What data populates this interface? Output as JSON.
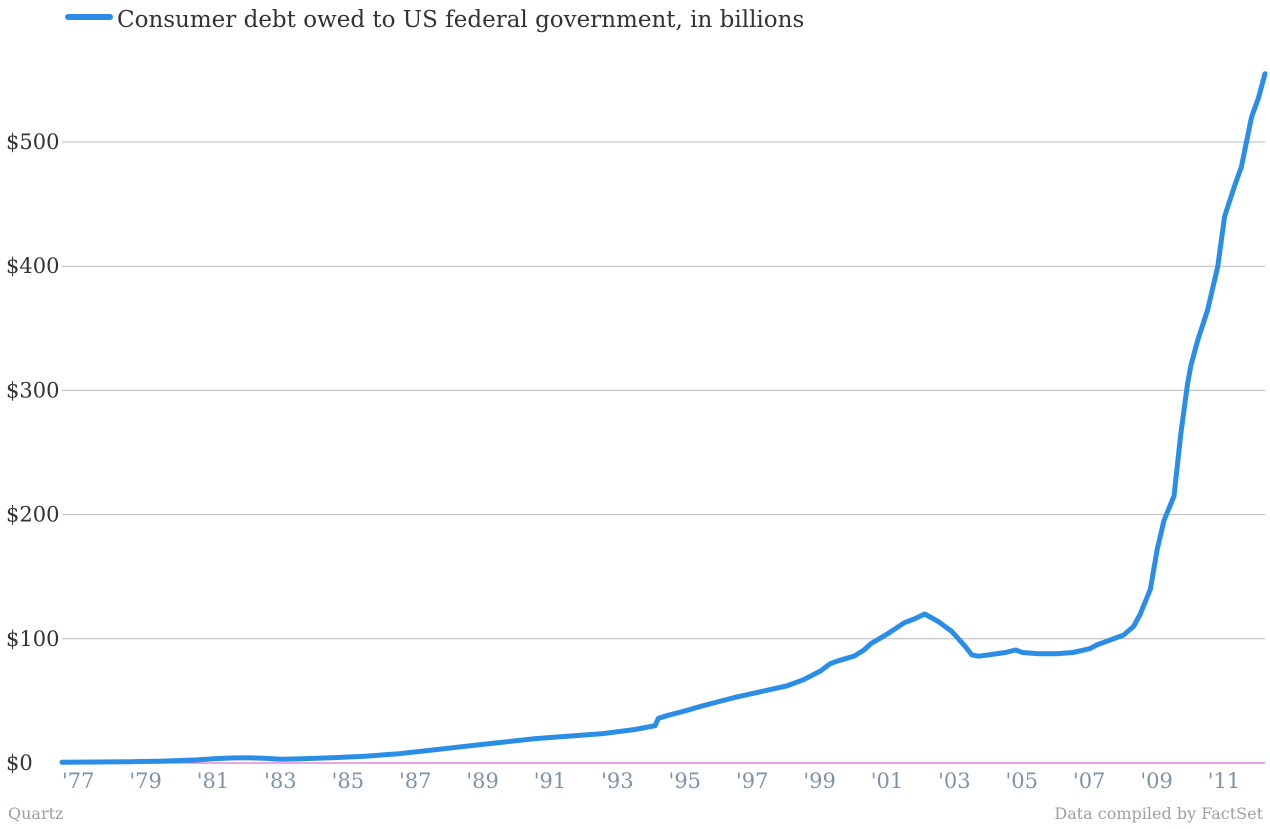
{
  "chart_data": {
    "type": "line",
    "title": "",
    "xlabel": "",
    "ylabel": "",
    "xlim": [
      1977,
      2012.7
    ],
    "ylim": [
      0,
      560
    ],
    "grid": true,
    "legend_position": "top-left",
    "y_ticks": [
      0,
      100,
      200,
      300,
      400,
      500
    ],
    "y_tick_labels": [
      "$0",
      "$100",
      "$200",
      "$300",
      "$400",
      "$500"
    ],
    "x_ticks": [
      1977,
      1979,
      1981,
      1983,
      1985,
      1987,
      1989,
      1991,
      1993,
      1995,
      1997,
      1999,
      2001,
      2003,
      2005,
      2007,
      2009,
      2011
    ],
    "x_tick_labels": [
      "'77",
      "'79",
      "'81",
      "'83",
      "'85",
      "'87",
      "'89",
      "'91",
      "'93",
      "'95",
      "'97",
      "'99",
      "'01",
      "'03",
      "'05",
      "'07",
      "'09",
      "'11"
    ],
    "series": [
      {
        "name": "Consumer debt owed to US federal government, in billions",
        "color": "#2b8ee6",
        "x": [
          1977.0,
          1978.0,
          1979.0,
          1980.0,
          1981.0,
          1981.5,
          1982.0,
          1982.5,
          1983.0,
          1983.5,
          1984.0,
          1985.0,
          1986.0,
          1987.0,
          1988.0,
          1989.0,
          1990.0,
          1990.5,
          1991.0,
          1992.0,
          1993.0,
          1994.0,
          1994.6,
          1994.7,
          1995.0,
          1995.5,
          1996.0,
          1996.5,
          1997.0,
          1997.5,
          1998.0,
          1998.5,
          1999.0,
          1999.5,
          1999.8,
          2000.0,
          2000.5,
          2000.8,
          2001.0,
          2001.5,
          2002.0,
          2002.3,
          2002.6,
          2003.0,
          2003.4,
          2003.6,
          2003.8,
          2004.0,
          2004.2,
          2004.5,
          2005.0,
          2005.3,
          2005.5,
          2006.0,
          2006.5,
          2007.0,
          2007.5,
          2007.7,
          2008.0,
          2008.5,
          2008.8,
          2009.0,
          2009.3,
          2009.5,
          2009.7,
          2010.0,
          2010.2,
          2010.4,
          2010.5,
          2010.7,
          2011.0,
          2011.3,
          2011.5,
          2011.8,
          2012.0,
          2012.3,
          2012.5,
          2012.7
        ],
        "values": [
          0.6,
          0.8,
          1.0,
          1.5,
          2.5,
          3.5,
          4.0,
          4.2,
          3.8,
          3.0,
          3.3,
          4.2,
          5.5,
          7.5,
          10.5,
          13.5,
          16.5,
          18.0,
          19.5,
          21.5,
          23.5,
          27.0,
          30.0,
          36.0,
          38.5,
          42.0,
          46.0,
          49.5,
          53.0,
          56.0,
          59.0,
          62.0,
          67.0,
          74.0,
          80.0,
          82.0,
          86.0,
          91.0,
          96.0,
          104.0,
          113.0,
          116.0,
          120.0,
          114.0,
          106.0,
          100.0,
          94.0,
          87.0,
          86.0,
          87.0,
          89.0,
          91.0,
          89.0,
          88.0,
          88.0,
          89.0,
          92.0,
          95.0,
          98.0,
          103.0,
          110.0,
          120.0,
          140.0,
          172.0,
          195.0,
          215.0,
          265.0,
          305.0,
          320.0,
          340.0,
          365.0,
          400.0,
          440.0,
          465.0,
          480.0,
          520.0,
          535.0,
          555.0
        ]
      }
    ]
  },
  "footer": {
    "left": "Quartz",
    "right": "Data compiled by FactSet"
  }
}
